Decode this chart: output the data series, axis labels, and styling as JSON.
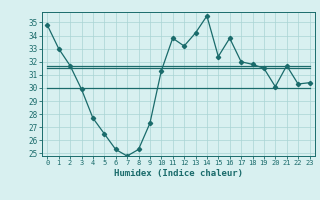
{
  "xlabel": "Humidex (Indice chaleur)",
  "x": [
    0,
    1,
    2,
    3,
    4,
    5,
    6,
    7,
    8,
    9,
    10,
    11,
    12,
    13,
    14,
    15,
    16,
    17,
    18,
    19,
    20,
    21,
    22,
    23
  ],
  "y_main": [
    34.8,
    33.0,
    31.7,
    29.9,
    27.7,
    26.5,
    25.3,
    24.8,
    25.3,
    27.3,
    31.3,
    33.8,
    33.2,
    34.2,
    35.5,
    32.4,
    33.8,
    32.0,
    31.8,
    31.5,
    30.1,
    31.7,
    30.3,
    30.4
  ],
  "y_line1": [
    31.7,
    31.7,
    31.7,
    31.7,
    31.7,
    31.7,
    31.7,
    31.7,
    31.7,
    31.7,
    31.7,
    31.7,
    31.7,
    31.7,
    31.7,
    31.7,
    31.7,
    31.7,
    31.7,
    31.7,
    31.7,
    31.7,
    31.7,
    31.7
  ],
  "y_line2": [
    31.55,
    31.55,
    31.55,
    31.55,
    31.55,
    31.55,
    31.55,
    31.55,
    31.55,
    31.55,
    31.55,
    31.55,
    31.55,
    31.55,
    31.55,
    31.55,
    31.55,
    31.55,
    31.55,
    31.55,
    31.55,
    31.55,
    31.55,
    31.55
  ],
  "y_line3": [
    30.0,
    30.0,
    30.0,
    30.0,
    30.0,
    30.0,
    30.0,
    30.0,
    30.0,
    30.0,
    30.0,
    30.0,
    30.0,
    30.0,
    30.0,
    30.0,
    30.0,
    30.0,
    30.0,
    30.0,
    30.0,
    30.0,
    30.0,
    30.0
  ],
  "line_color": "#1a6b6b",
  "bg_color": "#d8f0f0",
  "grid_color": "#aad4d4",
  "ylim": [
    24.8,
    35.8
  ],
  "yticks": [
    25,
    26,
    27,
    28,
    29,
    30,
    31,
    32,
    33,
    34,
    35
  ],
  "marker": "D",
  "markersize": 2.2,
  "linewidth": 0.9
}
